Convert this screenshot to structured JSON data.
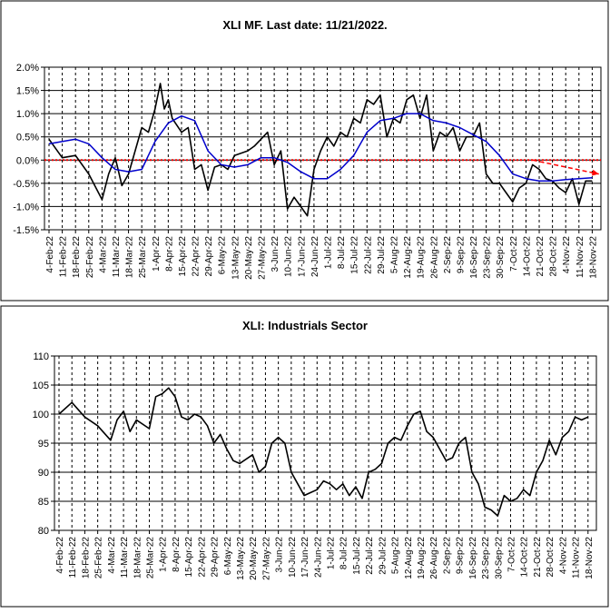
{
  "chart_data": [
    {
      "type": "line",
      "title": "XLI MF. Last date: 11/21/2022.",
      "xlabel": "",
      "ylabel": "",
      "y_tick_labels": [
        "2.0%",
        "1.5%",
        "1.0%",
        "0.5%",
        "0.0%",
        "-0.5%",
        "-1.0%",
        "-1.5%"
      ],
      "y_tick_values": [
        2.0,
        1.5,
        1.0,
        0.5,
        0.0,
        -0.5,
        -1.0,
        -1.5
      ],
      "ylim": [
        -1.5,
        2.0
      ],
      "grid": true,
      "legend": "none",
      "x_tick_labels": [
        "4-Feb-22",
        "11-Feb-22",
        "18-Feb-22",
        "25-Feb-22",
        "4-Mar-22",
        "11-Mar-22",
        "18-Mar-22",
        "25-Mar-22",
        "1-Apr-22",
        "8-Apr-22",
        "15-Apr-22",
        "22-Apr-22",
        "29-Apr-22",
        "6-May-22",
        "13-May-22",
        "20-May-22",
        "27-May-22",
        "3-Jun-22",
        "10-Jun-22",
        "17-Jun-22",
        "24-Jun-22",
        "1-Jul-22",
        "8-Jul-22",
        "15-Jul-22",
        "22-Jul-22",
        "29-Jul-22",
        "5-Aug-22",
        "12-Aug-22",
        "19-Aug-22",
        "26-Aug-22",
        "2-Sep-22",
        "9-Sep-22",
        "16-Sep-22",
        "23-Sep-22",
        "30-Sep-22",
        "7-Oct-22",
        "14-Oct-22",
        "21-Oct-22",
        "28-Oct-22",
        "4-Nov-22",
        "11-Nov-22",
        "18-Nov-22"
      ],
      "series": [
        {
          "color": "#000000",
          "points": [
            [
              0,
              0.45
            ],
            [
              1,
              0.05
            ],
            [
              2,
              0.1
            ],
            [
              3,
              -0.3
            ],
            [
              4,
              -0.85
            ],
            [
              4.5,
              -0.3
            ],
            [
              5,
              0.05
            ],
            [
              5.5,
              -0.55
            ],
            [
              6,
              -0.3
            ],
            [
              7,
              0.7
            ],
            [
              7.5,
              0.6
            ],
            [
              8,
              1.1
            ],
            [
              8.4,
              1.65
            ],
            [
              8.7,
              1.1
            ],
            [
              9,
              1.3
            ],
            [
              9.3,
              0.9
            ],
            [
              10,
              0.6
            ],
            [
              10.5,
              0.7
            ],
            [
              11,
              -0.2
            ],
            [
              11.5,
              -0.1
            ],
            [
              12,
              -0.65
            ],
            [
              12.5,
              -0.15
            ],
            [
              13,
              -0.1
            ],
            [
              13.5,
              -0.2
            ],
            [
              14,
              0.1
            ],
            [
              15,
              0.2
            ],
            [
              15.5,
              0.3
            ],
            [
              16,
              0.45
            ],
            [
              16.5,
              0.6
            ],
            [
              17,
              -0.1
            ],
            [
              17.5,
              0.2
            ],
            [
              18,
              -1.05
            ],
            [
              18.5,
              -0.8
            ],
            [
              19,
              -1.0
            ],
            [
              19.5,
              -1.2
            ],
            [
              20,
              -0.2
            ],
            [
              20.5,
              0.2
            ],
            [
              21,
              0.5
            ],
            [
              21.5,
              0.3
            ],
            [
              22,
              0.6
            ],
            [
              22.5,
              0.5
            ],
            [
              23,
              0.9
            ],
            [
              23.5,
              0.8
            ],
            [
              24,
              1.3
            ],
            [
              24.5,
              1.2
            ],
            [
              25,
              1.4
            ],
            [
              25.5,
              0.5
            ],
            [
              26,
              0.9
            ],
            [
              26.5,
              0.8
            ],
            [
              27,
              1.3
            ],
            [
              27.5,
              1.4
            ],
            [
              28,
              0.9
            ],
            [
              28.5,
              1.4
            ],
            [
              29,
              0.2
            ],
            [
              29.5,
              0.6
            ],
            [
              30,
              0.5
            ],
            [
              30.5,
              0.7
            ],
            [
              31,
              0.2
            ],
            [
              31.5,
              0.5
            ],
            [
              32,
              0.5
            ],
            [
              32.5,
              0.8
            ],
            [
              33,
              -0.3
            ],
            [
              33.5,
              -0.5
            ],
            [
              34,
              -0.5
            ],
            [
              34.5,
              -0.7
            ],
            [
              35,
              -0.9
            ],
            [
              35.5,
              -0.6
            ],
            [
              36,
              -0.5
            ],
            [
              36.5,
              -0.1
            ],
            [
              37,
              -0.2
            ],
            [
              37.5,
              -0.4
            ],
            [
              38,
              -0.45
            ],
            [
              38.5,
              -0.6
            ],
            [
              39,
              -0.7
            ],
            [
              39.5,
              -0.4
            ],
            [
              40,
              -0.95
            ],
            [
              40.5,
              -0.45
            ],
            [
              41,
              -0.45
            ]
          ]
        },
        {
          "color": "#0000cc",
          "points": [
            [
              0,
              0.35
            ],
            [
              2,
              0.45
            ],
            [
              3,
              0.35
            ],
            [
              4,
              0.05
            ],
            [
              5,
              -0.2
            ],
            [
              6,
              -0.25
            ],
            [
              7,
              -0.2
            ],
            [
              8,
              0.4
            ],
            [
              9,
              0.8
            ],
            [
              10,
              0.95
            ],
            [
              11,
              0.85
            ],
            [
              12,
              0.2
            ],
            [
              13,
              -0.1
            ],
            [
              14,
              -0.15
            ],
            [
              15,
              -0.1
            ],
            [
              16,
              0.05
            ],
            [
              17,
              0.05
            ],
            [
              18,
              -0.05
            ],
            [
              19,
              -0.25
            ],
            [
              20,
              -0.4
            ],
            [
              21,
              -0.4
            ],
            [
              22,
              -0.2
            ],
            [
              23,
              0.1
            ],
            [
              24,
              0.6
            ],
            [
              25,
              0.85
            ],
            [
              26,
              0.9
            ],
            [
              27,
              1.0
            ],
            [
              28,
              1.0
            ],
            [
              29,
              0.85
            ],
            [
              30,
              0.8
            ],
            [
              31,
              0.7
            ],
            [
              32,
              0.55
            ],
            [
              33,
              0.4
            ],
            [
              34,
              0.1
            ],
            [
              35,
              -0.3
            ],
            [
              36,
              -0.4
            ],
            [
              37,
              -0.45
            ],
            [
              38,
              -0.45
            ],
            [
              39,
              -0.42
            ],
            [
              40,
              -0.4
            ],
            [
              41,
              -0.38
            ]
          ]
        }
      ],
      "zero_line_color": "#ff0000",
      "trend_arrow": {
        "color": "#ff0000",
        "from": [
          36.5,
          0.0
        ],
        "to": [
          41.5,
          -0.3
        ]
      }
    },
    {
      "type": "line",
      "title": "XLI: Industrials Sector",
      "xlabel": "",
      "ylabel": "",
      "y_tick_labels": [
        "110",
        "105",
        "100",
        "95",
        "90",
        "85",
        "80"
      ],
      "y_tick_values": [
        110,
        105,
        100,
        95,
        90,
        85,
        80
      ],
      "ylim": [
        80,
        110
      ],
      "grid": true,
      "legend": "none",
      "x_tick_labels": [
        "4-Feb-22",
        "11-Feb-22",
        "18-Feb-22",
        "25-Feb-22",
        "4-Mar-22",
        "11-Mar-22",
        "18-Mar-22",
        "25-Mar-22",
        "1-Apr-22",
        "8-Apr-22",
        "15-Apr-22",
        "22-Apr-22",
        "29-Apr-22",
        "6-May-22",
        "13-May-22",
        "20-May-22",
        "27-May-22",
        "3-Jun-22",
        "10-Jun-22",
        "17-Jun-22",
        "24-Jun-22",
        "1-Jul-22",
        "8-Jul-22",
        "15-Jul-22",
        "22-Jul-22",
        "29-Jul-22",
        "5-Aug-22",
        "12-Aug-22",
        "19-Aug-22",
        "26-Aug-22",
        "2-Sep-22",
        "9-Sep-22",
        "16-Sep-22",
        "23-Sep-22",
        "30-Sep-22",
        "7-Oct-22",
        "14-Oct-22",
        "21-Oct-22",
        "28-Oct-22",
        "4-Nov-22",
        "11-Nov-22",
        "18-Nov-22"
      ],
      "series": [
        {
          "color": "#000000",
          "points": [
            [
              0,
              100
            ],
            [
              1,
              102
            ],
            [
              2,
              99.5
            ],
            [
              3,
              98
            ],
            [
              4,
              95.5
            ],
            [
              4.5,
              99
            ],
            [
              5,
              100.5
            ],
            [
              5.5,
              97
            ],
            [
              6,
              99
            ],
            [
              7,
              97.5
            ],
            [
              7.5,
              103
            ],
            [
              8,
              103.5
            ],
            [
              8.5,
              104.5
            ],
            [
              9,
              103
            ],
            [
              9.5,
              99.5
            ],
            [
              10,
              99
            ],
            [
              10.5,
              100
            ],
            [
              11,
              99.5
            ],
            [
              11.5,
              98
            ],
            [
              12,
              95
            ],
            [
              12.5,
              96.5
            ],
            [
              13,
              94
            ],
            [
              13.5,
              92
            ],
            [
              14,
              91.5
            ],
            [
              15,
              93
            ],
            [
              15.5,
              90
            ],
            [
              16,
              91
            ],
            [
              16.5,
              95
            ],
            [
              17,
              96
            ],
            [
              17.5,
              95
            ],
            [
              18,
              90
            ],
            [
              18.5,
              88
            ],
            [
              19,
              86
            ],
            [
              19.5,
              86.5
            ],
            [
              20,
              87
            ],
            [
              20.5,
              88.5
            ],
            [
              21,
              88
            ],
            [
              21.5,
              87
            ],
            [
              22,
              88
            ],
            [
              22.5,
              86
            ],
            [
              23,
              87.5
            ],
            [
              23.5,
              85.5
            ],
            [
              24,
              90
            ],
            [
              24.5,
              90.5
            ],
            [
              25,
              91.5
            ],
            [
              25.5,
              95
            ],
            [
              26,
              96
            ],
            [
              26.5,
              95.5
            ],
            [
              27,
              98
            ],
            [
              27.5,
              100
            ],
            [
              28,
              100.5
            ],
            [
              28.5,
              97
            ],
            [
              29,
              96
            ],
            [
              29.5,
              94
            ],
            [
              30,
              92
            ],
            [
              30.5,
              92.5
            ],
            [
              31,
              95
            ],
            [
              31.5,
              96
            ],
            [
              32,
              90
            ],
            [
              32.5,
              88
            ],
            [
              33,
              84
            ],
            [
              33.5,
              83.5
            ],
            [
              34,
              82.5
            ],
            [
              34.5,
              86
            ],
            [
              35,
              85
            ],
            [
              35.5,
              85.5
            ],
            [
              36,
              87
            ],
            [
              36.5,
              86
            ],
            [
              37,
              90
            ],
            [
              37.5,
              92
            ],
            [
              38,
              95.5
            ],
            [
              38.5,
              93
            ],
            [
              39,
              96
            ],
            [
              39.5,
              97
            ],
            [
              40,
              99.5
            ],
            [
              40.5,
              99
            ],
            [
              41,
              99.5
            ]
          ]
        }
      ]
    }
  ]
}
